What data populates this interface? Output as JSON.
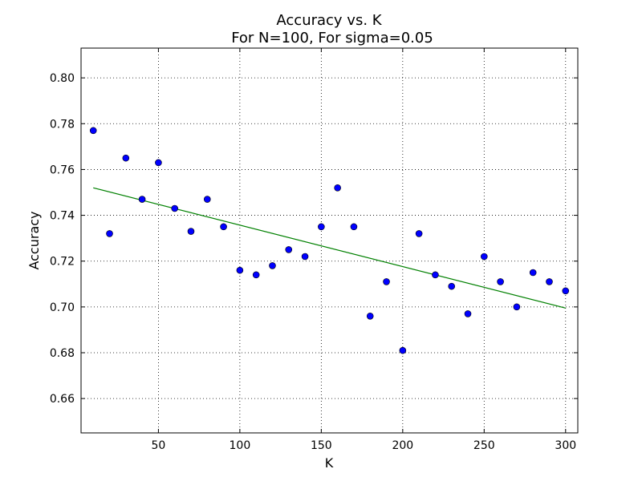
{
  "chart_data": {
    "type": "scatter",
    "title": "Accuracy vs. K",
    "subtitle": "For N=100, For sigma=0.05",
    "xlabel": "K",
    "ylabel": "Accuracy",
    "xlim": [
      2.5,
      307.5
    ],
    "ylim": [
      0.645,
      0.813
    ],
    "xticks": [
      50,
      100,
      150,
      200,
      250,
      300
    ],
    "xtick_labels": [
      "50",
      "100",
      "150",
      "200",
      "250",
      "300"
    ],
    "yticks": [
      0.66,
      0.68,
      0.7,
      0.72,
      0.74,
      0.76,
      0.78,
      0.8
    ],
    "ytick_labels": [
      "0.66",
      "0.68",
      "0.70",
      "0.72",
      "0.74",
      "0.76",
      "0.78",
      "0.80"
    ],
    "grid": true,
    "series": [
      {
        "kind": "points",
        "color": "#0000ff",
        "x": [
          10,
          20,
          30,
          40,
          50,
          60,
          70,
          80,
          90,
          100,
          110,
          120,
          130,
          140,
          150,
          160,
          170,
          180,
          190,
          200,
          210,
          220,
          230,
          240,
          250,
          260,
          270,
          280,
          290,
          300
        ],
        "y": [
          0.777,
          0.732,
          0.765,
          0.747,
          0.763,
          0.743,
          0.733,
          0.747,
          0.735,
          0.716,
          0.714,
          0.718,
          0.725,
          0.722,
          0.735,
          0.752,
          0.735,
          0.696,
          0.711,
          0.681,
          0.732,
          0.714,
          0.709,
          0.697,
          0.722,
          0.711,
          0.7,
          0.715,
          0.711,
          0.707
        ]
      },
      {
        "kind": "fit-line",
        "color": "#008000",
        "x": [
          10,
          300
        ],
        "y": [
          0.752,
          0.6995
        ]
      }
    ]
  }
}
